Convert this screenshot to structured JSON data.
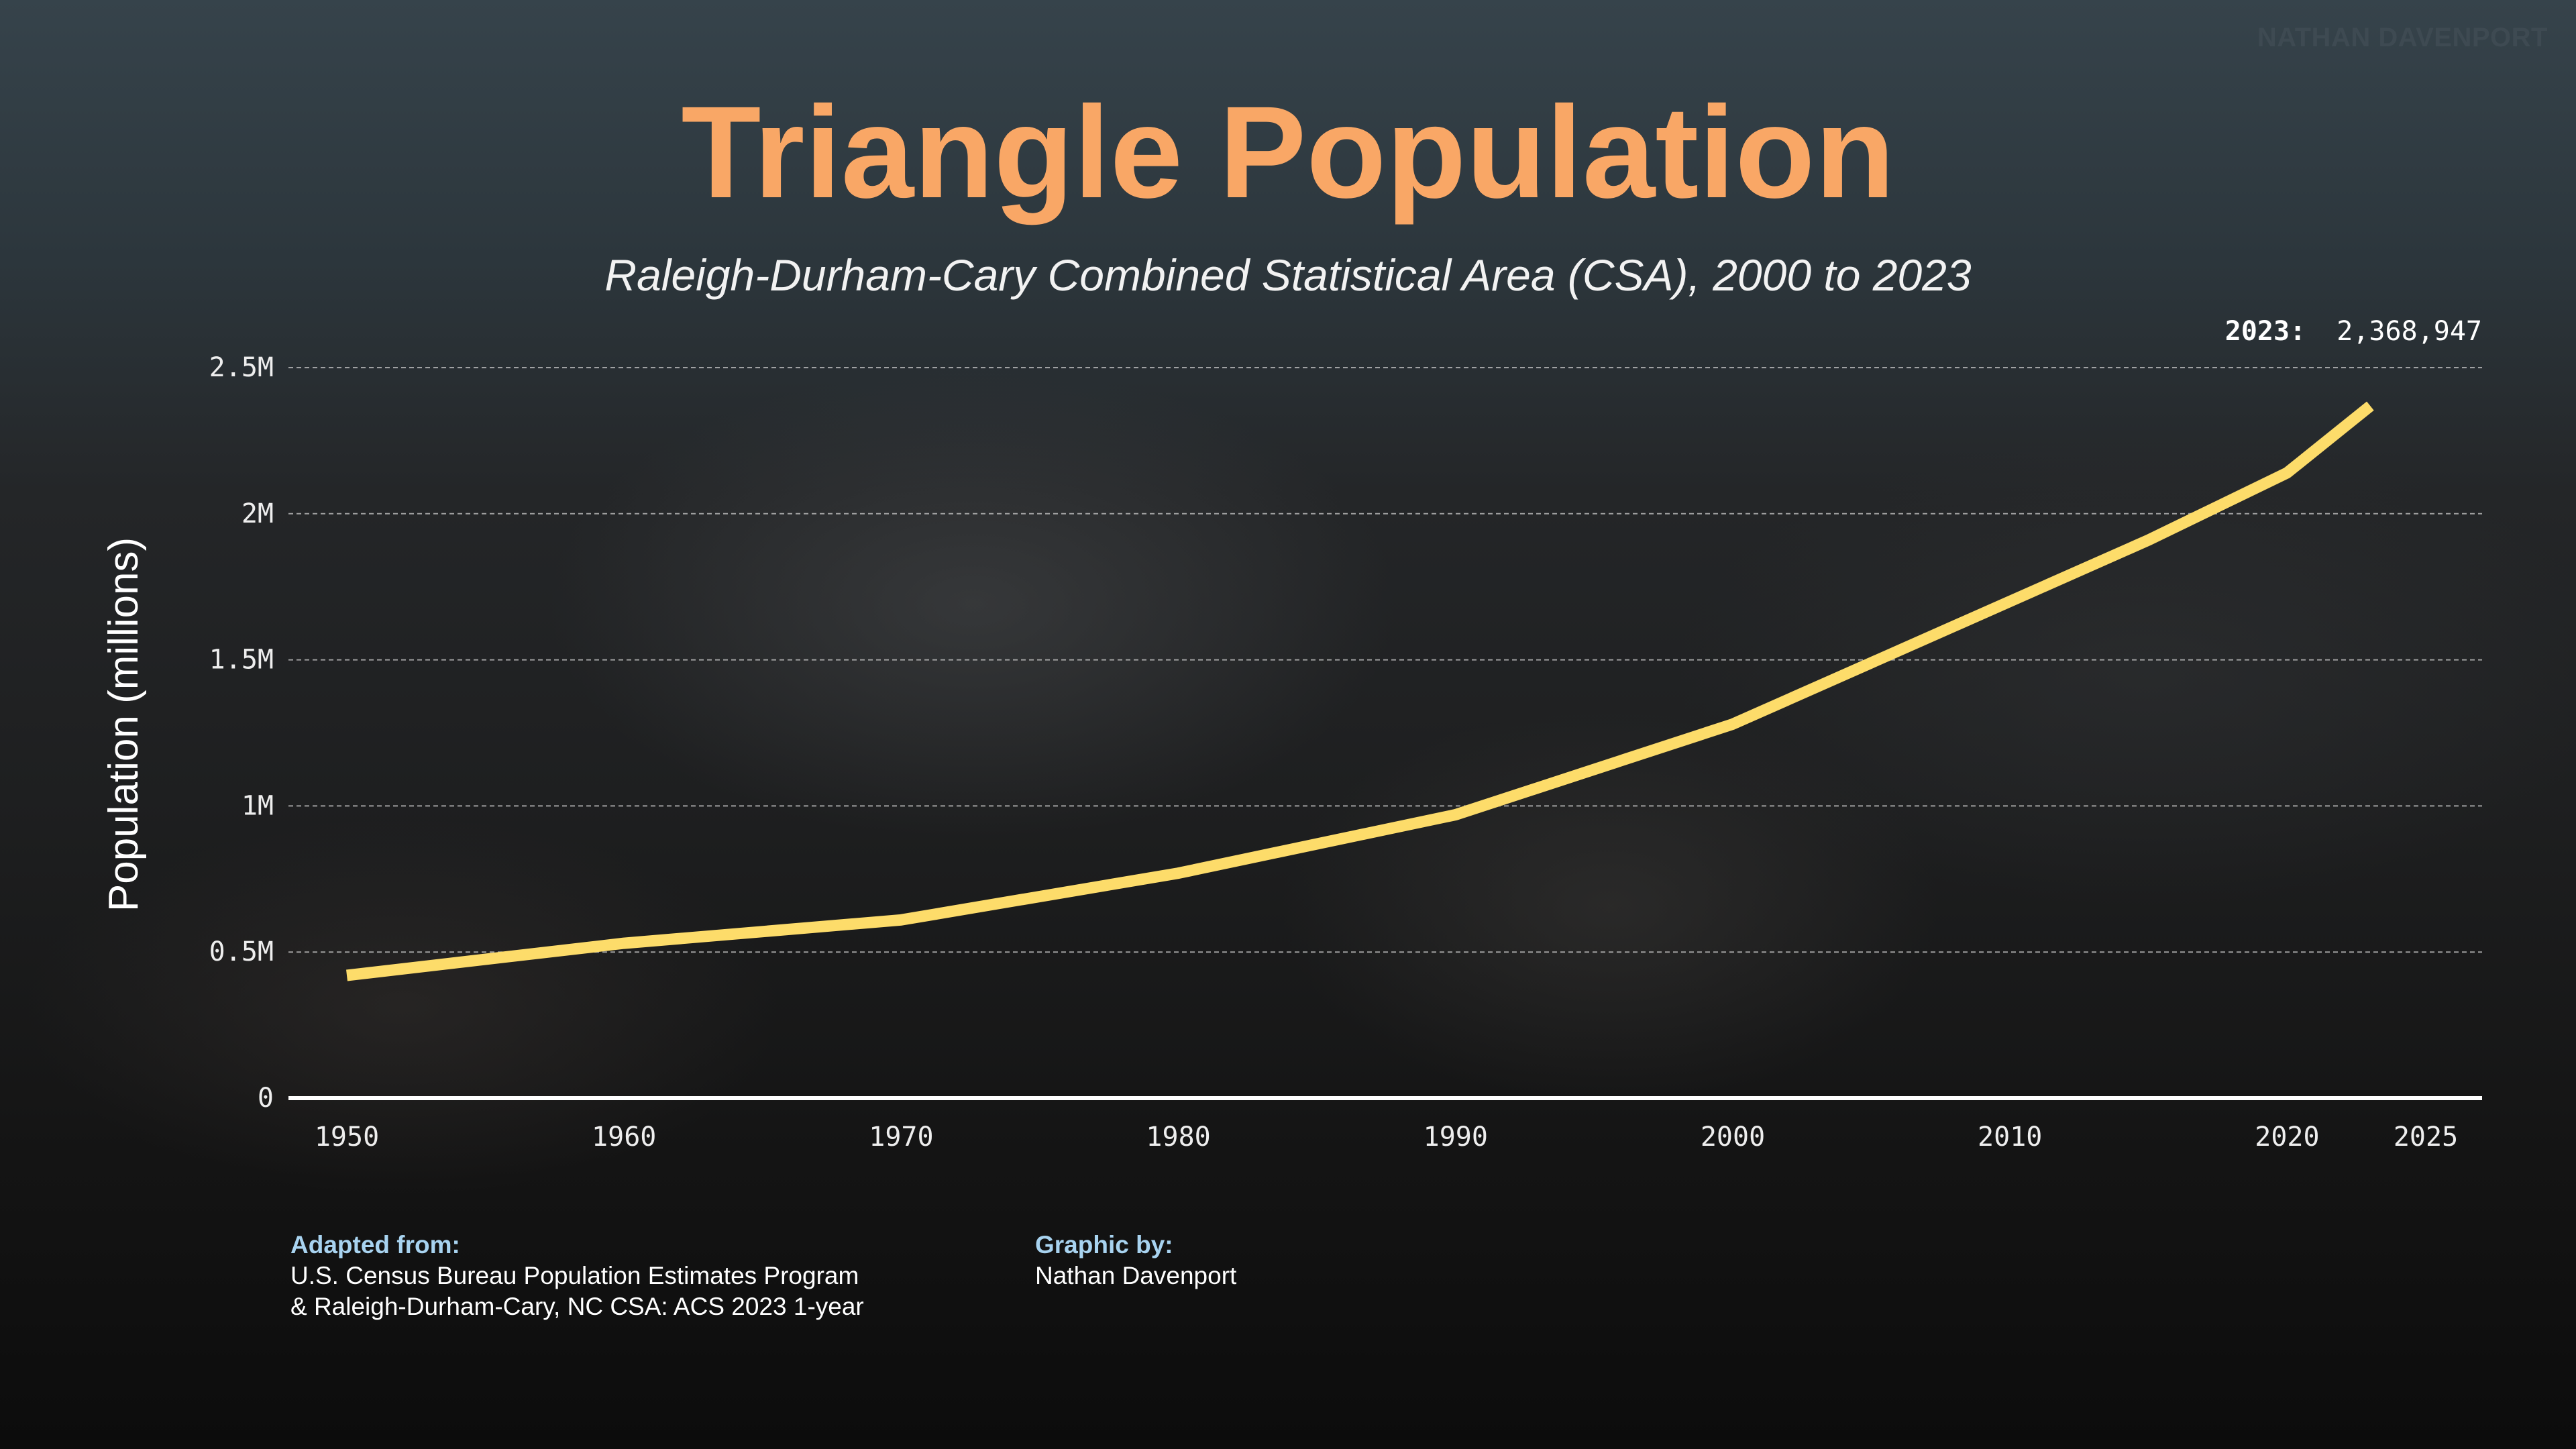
{
  "header": {
    "watermark": "NATHAN DAVENPORT",
    "title": "Triangle Population",
    "subtitle": "Raleigh-Durham-Cary Combined Statistical Area (CSA), 2000 to 2023"
  },
  "footer": {
    "source_heading": "Adapted from:",
    "source_line1": "U.S. Census Bureau Population Estimates Program",
    "source_line2": "& Raleigh-Durham-Cary, NC CSA: ACS 2023 1-year",
    "credit_heading": "Graphic by:",
    "credit_name": "Nathan Davenport"
  },
  "colors": {
    "title": "#f9a766",
    "line": "#fddc6a",
    "footer_heading": "#a8d3f0",
    "watermark": "#3e4a52"
  },
  "chart_data": {
    "type": "line",
    "title": "Triangle Population",
    "subtitle": "Raleigh-Durham-Cary Combined Statistical Area (CSA), 2000 to 2023",
    "xlabel": "",
    "ylabel": "Population (millions)",
    "xlim": [
      1950,
      2025
    ],
    "ylim": [
      0,
      2500000
    ],
    "x_ticks": [
      1950,
      1960,
      1970,
      1980,
      1990,
      2000,
      2010,
      2020,
      2025
    ],
    "x_tick_labels": [
      "1950",
      "1960",
      "1970",
      "1980",
      "1990",
      "2000",
      "2010",
      "2020",
      "2025"
    ],
    "y_ticks": [
      0,
      500000,
      1000000,
      1500000,
      2000000,
      2500000
    ],
    "y_tick_labels": [
      "0",
      "0.5M",
      "1M",
      "1.5M",
      "2M",
      "2.5M"
    ],
    "grid": "horizontal dashed",
    "series": [
      {
        "x": [
          1950,
          1960,
          1970,
          1980,
          1990,
          2000,
          2010,
          2015,
          2020,
          2023
        ],
        "values": [
          420000,
          530000,
          610000,
          770000,
          970000,
          1280000,
          1700000,
          1910000,
          2140000,
          2368947
        ]
      }
    ],
    "annotation": {
      "label": "2023:",
      "value": "2,368,947"
    }
  }
}
